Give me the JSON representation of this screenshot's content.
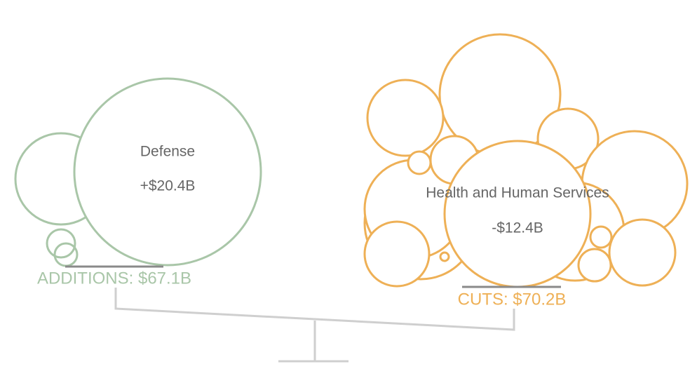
{
  "additions": {
    "label": "ADDITIONS: $67.1B",
    "featured": {
      "name": "Defense",
      "amount": "+$20.4B"
    }
  },
  "cuts": {
    "label": "CUTS: $70.2B",
    "featured": {
      "name": "Health and Human Services",
      "amount": "-$12.4B"
    }
  }
}
